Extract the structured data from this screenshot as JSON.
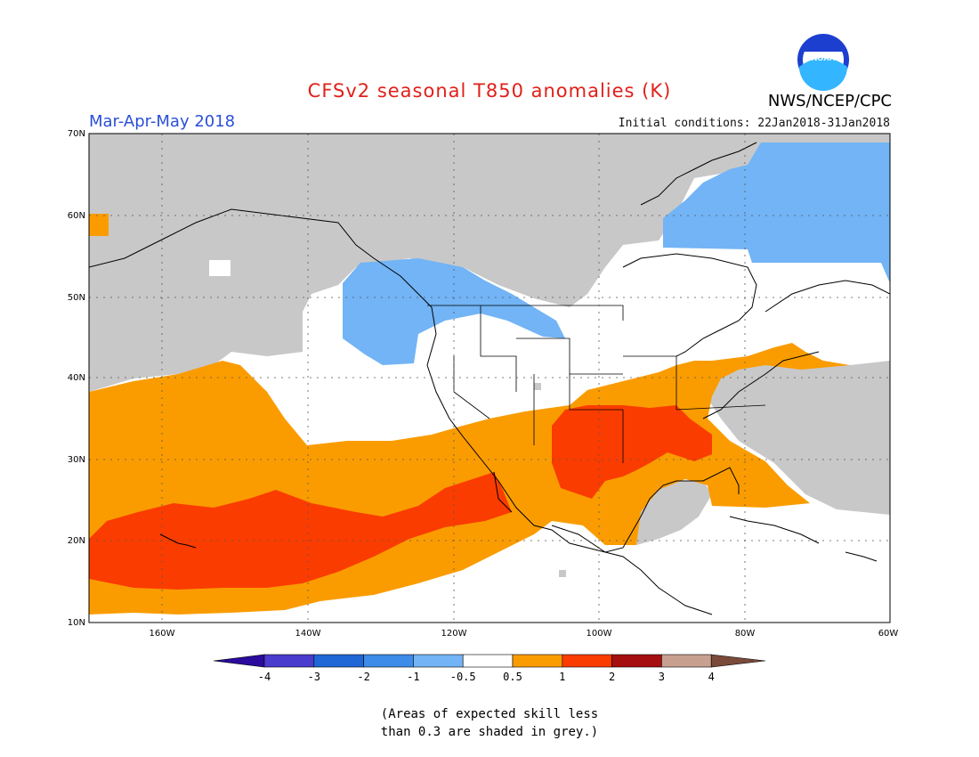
{
  "header": {
    "title": "CFSv2 seasonal T850 anomalies (K)",
    "period": "Mar-Apr-May 2018",
    "initial_conditions": "Initial conditions: 22Jan2018-31Jan2018",
    "agency": "NWS/NCEP/CPC",
    "logo_text": "NOAA"
  },
  "map": {
    "lat_labels": [
      "70N",
      "60N",
      "50N",
      "40N",
      "30N",
      "20N",
      "10N"
    ],
    "lon_labels": [
      "160W",
      "140W",
      "120W",
      "100W",
      "80W",
      "60W"
    ],
    "colors": {
      "grey": "#c8c8c8",
      "light_blue": "#72b4f5",
      "orange": "#fa9c00",
      "red": "#fa3c00",
      "white": "#ffffff"
    }
  },
  "colorbar": {
    "labels": [
      "-4",
      "-3",
      "-2",
      "-1",
      "-0.5",
      "0.5",
      "1",
      "2",
      "3",
      "4"
    ],
    "colors": [
      "#2a0b9e",
      "#4a3ccc",
      "#1f66d6",
      "#3c8ce8",
      "#72b4f5",
      "#ffffff",
      "#fa9c00",
      "#fa3c00",
      "#a50f0f",
      "#c8a090",
      "#7a4a3a"
    ]
  },
  "note": "(Areas of expected skill less\nthan 0.3 are shaded in grey.)"
}
